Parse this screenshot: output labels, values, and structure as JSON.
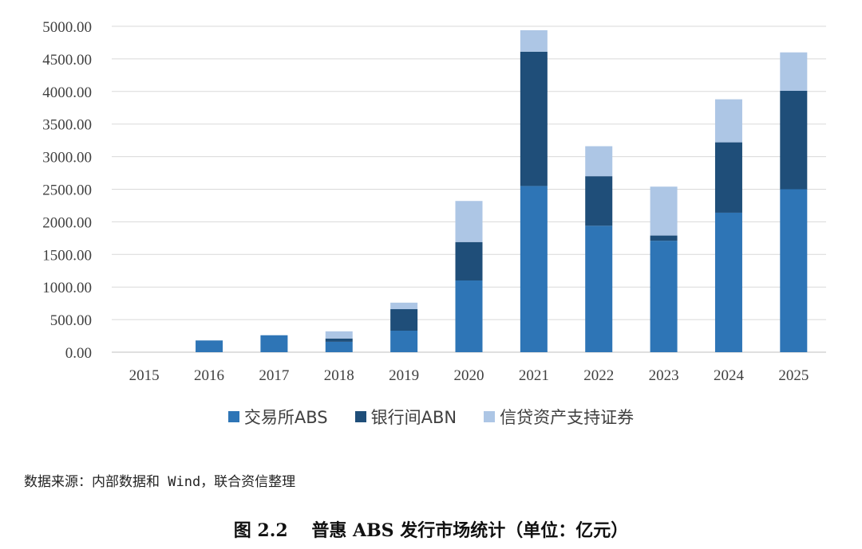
{
  "chart_data": {
    "type": "bar",
    "stacked": true,
    "categories": [
      "2015",
      "2016",
      "2017",
      "2018",
      "2019",
      "2020",
      "2021",
      "2022",
      "2023",
      "2024",
      "2025"
    ],
    "series": [
      {
        "name": "交易所ABS",
        "color": "#2e75b6",
        "values": [
          0,
          180,
          260,
          160,
          330,
          1100,
          2550,
          1940,
          1710,
          2140,
          2500
        ]
      },
      {
        "name": "银行间ABN",
        "color": "#1f4e79",
        "values": [
          0,
          0,
          0,
          50,
          330,
          590,
          2060,
          760,
          80,
          1080,
          1510
        ]
      },
      {
        "name": "信贷资产支持证券",
        "color": "#adc6e5",
        "values": [
          0,
          0,
          0,
          110,
          100,
          630,
          330,
          460,
          750,
          660,
          590
        ]
      }
    ],
    "ylim": [
      0,
      5000
    ],
    "yticks": [
      "0.00",
      "500.00",
      "1000.00",
      "1500.00",
      "2000.00",
      "2500.00",
      "3000.00",
      "3500.00",
      "4000.00",
      "4500.00",
      "5000.00"
    ],
    "grid": true,
    "legend_position": "bottom"
  },
  "source_note": "数据来源：内部数据和 Wind，联合资信整理",
  "caption": "图 2.2　 普惠 ABS 发行市场统计（单位：亿元）"
}
